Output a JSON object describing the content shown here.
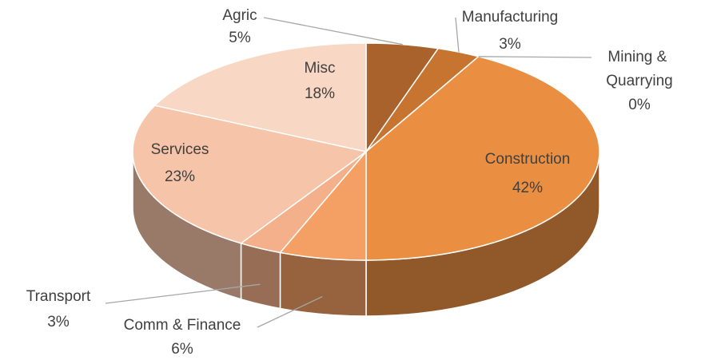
{
  "chart_data": {
    "type": "pie",
    "categories": [
      "Agric",
      "Manufacturing",
      "Mining & Quarrying",
      "Construction",
      "Comm & Finance",
      "Transport",
      "Services",
      "Misc"
    ],
    "values": [
      5,
      3,
      0,
      42,
      6,
      3,
      23,
      18
    ],
    "value_labels": [
      "5%",
      "3%",
      "0%",
      "42%",
      "6%",
      "3%",
      "23%",
      "18%"
    ],
    "colors": [
      "#a9622c",
      "#c77430",
      "#d88438",
      "#ea8e42",
      "#f4a064",
      "#f3b08a",
      "#f6c4a8",
      "#f8d7c4"
    ]
  }
}
